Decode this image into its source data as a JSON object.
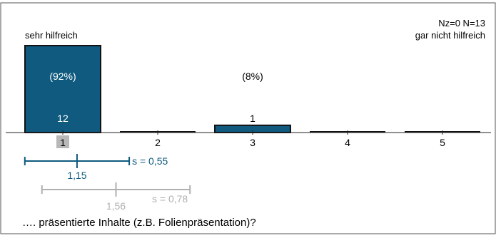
{
  "chart_data": {
    "type": "bar",
    "categories": [
      "1",
      "2",
      "3",
      "4",
      "5"
    ],
    "values": [
      12,
      0,
      1,
      0,
      0
    ],
    "percent_labels": [
      "(92%)",
      "",
      "(8%)",
      "",
      ""
    ],
    "count_labels": [
      "12",
      "",
      "1",
      "",
      ""
    ],
    "ylim": [
      0,
      12
    ],
    "highlighted_category": "1",
    "n_label": "Nz=0  N=13",
    "scale_left_label": "sehr hilfreich",
    "scale_right_label": "gar nicht hilfreich",
    "question": "…. präsentierte Inhalte (z.B. Folienpräsentation)?",
    "stat_primary": {
      "mean": 1.15,
      "sd": 0.55,
      "mean_label": "1,15",
      "sd_label": "s = 0,55"
    },
    "stat_reference": {
      "mean": 1.56,
      "sd": 0.78,
      "mean_label": "1,56",
      "sd_label": "s = 0,78"
    },
    "colors": {
      "bar": "#0f5a7e",
      "primary_line": "#0f5a7e",
      "reference_line": "#b0b0b0",
      "highlight": "#b8b8b8"
    }
  }
}
